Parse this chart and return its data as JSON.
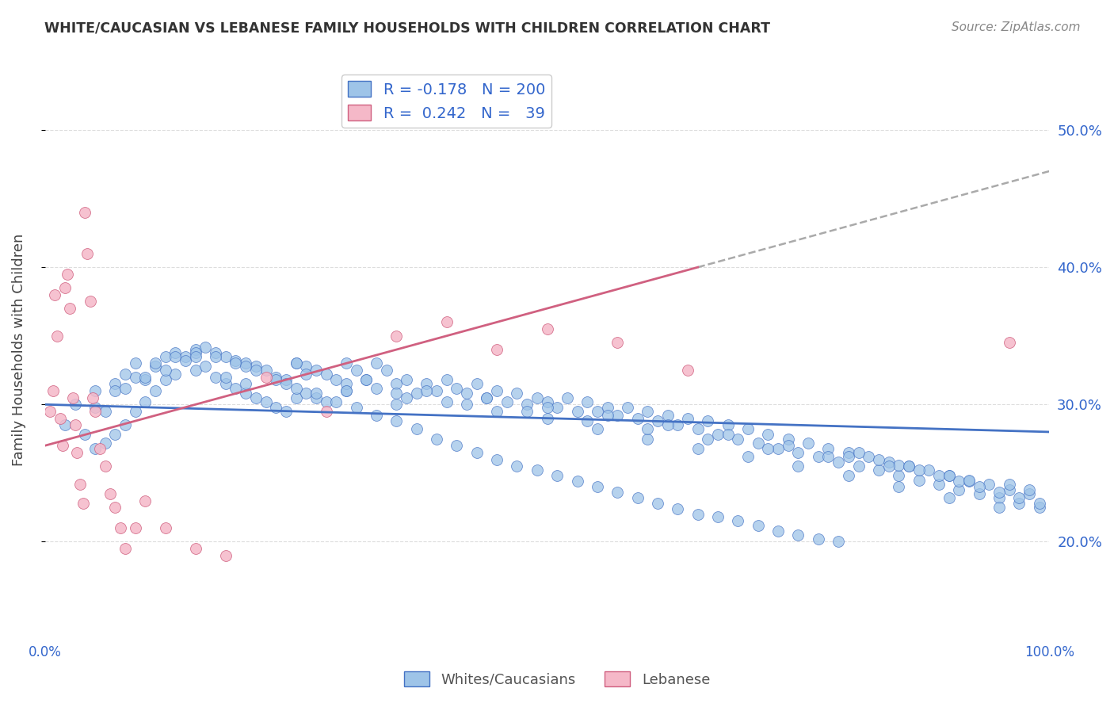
{
  "title": "WHITE/CAUCASIAN VS LEBANESE FAMILY HOUSEHOLDS WITH CHILDREN CORRELATION CHART",
  "source": "Source: ZipAtlas.com",
  "ylabel": "Family Households with Children",
  "xlim": [
    0,
    1
  ],
  "ylim": [
    0.13,
    0.55
  ],
  "y_ticks": [
    0.2,
    0.3,
    0.4,
    0.5
  ],
  "blue_R": -0.178,
  "blue_N": 200,
  "pink_R": 0.242,
  "pink_N": 39,
  "blue_color": "#9ec4e8",
  "pink_color": "#f5b8c8",
  "blue_line_color": "#4472c4",
  "pink_line_color": "#d06080",
  "trendline_dash_color": "#aaaaaa",
  "legend_label_1": "Whites/Caucasians",
  "legend_label_2": "Lebanese",
  "background_color": "#ffffff",
  "grid_color": "#dddddd",
  "title_color": "#333333",
  "stat_color": "#3366cc",
  "blue_scatter_x": [
    0.02,
    0.03,
    0.04,
    0.05,
    0.05,
    0.06,
    0.06,
    0.07,
    0.07,
    0.08,
    0.08,
    0.09,
    0.09,
    0.1,
    0.1,
    0.11,
    0.11,
    0.12,
    0.12,
    0.13,
    0.13,
    0.14,
    0.15,
    0.15,
    0.16,
    0.16,
    0.17,
    0.17,
    0.18,
    0.18,
    0.19,
    0.19,
    0.2,
    0.2,
    0.21,
    0.21,
    0.22,
    0.22,
    0.23,
    0.23,
    0.24,
    0.24,
    0.25,
    0.25,
    0.26,
    0.26,
    0.27,
    0.27,
    0.28,
    0.28,
    0.29,
    0.3,
    0.3,
    0.31,
    0.32,
    0.33,
    0.33,
    0.34,
    0.35,
    0.35,
    0.36,
    0.37,
    0.38,
    0.39,
    0.4,
    0.41,
    0.42,
    0.43,
    0.44,
    0.45,
    0.46,
    0.47,
    0.48,
    0.49,
    0.5,
    0.51,
    0.52,
    0.53,
    0.54,
    0.55,
    0.56,
    0.57,
    0.58,
    0.59,
    0.6,
    0.61,
    0.62,
    0.63,
    0.64,
    0.65,
    0.66,
    0.67,
    0.68,
    0.69,
    0.7,
    0.71,
    0.72,
    0.73,
    0.74,
    0.75,
    0.76,
    0.77,
    0.78,
    0.79,
    0.8,
    0.81,
    0.82,
    0.83,
    0.84,
    0.85,
    0.86,
    0.87,
    0.88,
    0.89,
    0.9,
    0.91,
    0.92,
    0.93,
    0.94,
    0.95,
    0.96,
    0.97,
    0.98,
    0.99,
    0.05,
    0.07,
    0.09,
    0.11,
    0.13,
    0.15,
    0.17,
    0.19,
    0.21,
    0.23,
    0.25,
    0.27,
    0.29,
    0.31,
    0.33,
    0.35,
    0.37,
    0.39,
    0.41,
    0.43,
    0.45,
    0.47,
    0.49,
    0.51,
    0.53,
    0.55,
    0.57,
    0.59,
    0.61,
    0.63,
    0.65,
    0.67,
    0.69,
    0.71,
    0.73,
    0.75,
    0.77,
    0.79,
    0.81,
    0.83,
    0.85,
    0.87,
    0.89,
    0.91,
    0.93,
    0.95,
    0.97,
    0.99,
    0.1,
    0.15,
    0.2,
    0.25,
    0.3,
    0.35,
    0.4,
    0.45,
    0.5,
    0.55,
    0.6,
    0.65,
    0.7,
    0.75,
    0.8,
    0.85,
    0.9,
    0.95,
    0.12,
    0.18,
    0.24,
    0.3,
    0.36,
    0.42,
    0.48,
    0.54,
    0.6,
    0.66,
    0.72,
    0.78,
    0.84,
    0.9,
    0.96,
    0.08,
    0.14,
    0.2,
    0.26,
    0.32,
    0.38,
    0.44,
    0.5,
    0.56,
    0.62,
    0.68,
    0.74,
    0.8,
    0.86,
    0.92,
    0.98
  ],
  "blue_scatter_y": [
    0.285,
    0.3,
    0.278,
    0.31,
    0.268,
    0.295,
    0.272,
    0.315,
    0.278,
    0.322,
    0.285,
    0.33,
    0.295,
    0.318,
    0.302,
    0.328,
    0.31,
    0.335,
    0.318,
    0.338,
    0.322,
    0.335,
    0.34,
    0.325,
    0.342,
    0.328,
    0.338,
    0.32,
    0.335,
    0.315,
    0.332,
    0.312,
    0.33,
    0.308,
    0.328,
    0.305,
    0.325,
    0.302,
    0.32,
    0.298,
    0.318,
    0.295,
    0.33,
    0.305,
    0.328,
    0.308,
    0.325,
    0.305,
    0.322,
    0.302,
    0.318,
    0.33,
    0.31,
    0.325,
    0.318,
    0.33,
    0.312,
    0.325,
    0.315,
    0.3,
    0.318,
    0.308,
    0.315,
    0.31,
    0.318,
    0.312,
    0.308,
    0.315,
    0.305,
    0.31,
    0.302,
    0.308,
    0.3,
    0.305,
    0.302,
    0.298,
    0.305,
    0.295,
    0.302,
    0.295,
    0.298,
    0.292,
    0.298,
    0.29,
    0.295,
    0.288,
    0.292,
    0.285,
    0.29,
    0.282,
    0.288,
    0.278,
    0.285,
    0.275,
    0.282,
    0.272,
    0.278,
    0.268,
    0.275,
    0.265,
    0.272,
    0.262,
    0.268,
    0.258,
    0.265,
    0.255,
    0.262,
    0.252,
    0.258,
    0.248,
    0.255,
    0.245,
    0.252,
    0.242,
    0.248,
    0.238,
    0.244,
    0.235,
    0.242,
    0.232,
    0.238,
    0.228,
    0.235,
    0.225,
    0.298,
    0.31,
    0.32,
    0.33,
    0.335,
    0.338,
    0.335,
    0.33,
    0.325,
    0.318,
    0.312,
    0.308,
    0.302,
    0.298,
    0.292,
    0.288,
    0.282,
    0.275,
    0.27,
    0.265,
    0.26,
    0.255,
    0.252,
    0.248,
    0.244,
    0.24,
    0.236,
    0.232,
    0.228,
    0.224,
    0.22,
    0.218,
    0.215,
    0.212,
    0.208,
    0.205,
    0.202,
    0.2,
    0.265,
    0.26,
    0.256,
    0.252,
    0.248,
    0.244,
    0.24,
    0.236,
    0.232,
    0.228,
    0.32,
    0.335,
    0.315,
    0.33,
    0.315,
    0.308,
    0.302,
    0.295,
    0.29,
    0.282,
    0.275,
    0.268,
    0.262,
    0.255,
    0.248,
    0.24,
    0.232,
    0.225,
    0.325,
    0.32,
    0.315,
    0.31,
    0.305,
    0.3,
    0.295,
    0.288,
    0.282,
    0.275,
    0.268,
    0.262,
    0.255,
    0.248,
    0.242,
    0.312,
    0.332,
    0.328,
    0.322,
    0.318,
    0.31,
    0.305,
    0.298,
    0.292,
    0.285,
    0.278,
    0.27,
    0.262,
    0.255,
    0.245,
    0.238
  ],
  "pink_scatter_x": [
    0.005,
    0.008,
    0.01,
    0.012,
    0.015,
    0.018,
    0.02,
    0.022,
    0.025,
    0.028,
    0.03,
    0.032,
    0.035,
    0.038,
    0.04,
    0.042,
    0.045,
    0.048,
    0.05,
    0.055,
    0.06,
    0.065,
    0.07,
    0.075,
    0.08,
    0.09,
    0.1,
    0.12,
    0.15,
    0.18,
    0.22,
    0.28,
    0.35,
    0.4,
    0.45,
    0.5,
    0.57,
    0.64,
    0.96
  ],
  "pink_scatter_y": [
    0.295,
    0.31,
    0.38,
    0.35,
    0.29,
    0.27,
    0.385,
    0.395,
    0.37,
    0.305,
    0.285,
    0.265,
    0.242,
    0.228,
    0.44,
    0.41,
    0.375,
    0.305,
    0.295,
    0.268,
    0.255,
    0.235,
    0.225,
    0.21,
    0.195,
    0.21,
    0.23,
    0.21,
    0.195,
    0.19,
    0.32,
    0.295,
    0.35,
    0.36,
    0.34,
    0.355,
    0.345,
    0.325,
    0.345
  ]
}
